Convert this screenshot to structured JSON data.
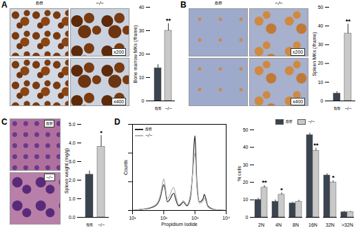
{
  "chart_data": [
    {
      "type": "bar",
      "title": "A",
      "y_label": "Bone marrow MKs (/frame)",
      "categories": [
        "fl/fl",
        "−/−"
      ],
      "values": [
        14,
        30
      ],
      "errors": [
        1.5,
        3
      ],
      "colors": [
        "#3a4350",
        "#c9c9c9"
      ],
      "ylim": [
        0,
        40
      ],
      "yticks": [
        0,
        10,
        20,
        30,
        40
      ],
      "annotations": [
        null,
        "**"
      ],
      "image_labels": {
        "columns": [
          "fl/fl",
          "−/−"
        ],
        "rows": [
          "x200",
          "x400"
        ]
      }
    },
    {
      "type": "bar",
      "title": "B",
      "y_label": "Spleen MKs (/frame)",
      "categories": [
        "fl/fl",
        "−/−"
      ],
      "values": [
        4,
        36
      ],
      "errors": [
        1,
        5
      ],
      "colors": [
        "#3a4350",
        "#c9c9c9"
      ],
      "ylim": [
        0,
        50
      ],
      "yticks": [
        0,
        10,
        20,
        30,
        40,
        50
      ],
      "annotations": [
        null,
        "**"
      ],
      "image_labels": {
        "columns": [
          "fl/fl",
          "−/−"
        ],
        "rows": [
          "x200",
          "x400"
        ]
      }
    },
    {
      "type": "bar",
      "title": "C",
      "y_label": "Spleen weight (mg/g)",
      "categories": [
        "fl/fl",
        "−/−"
      ],
      "values": [
        2.3,
        3.8
      ],
      "errors": [
        0.2,
        0.6
      ],
      "colors": [
        "#3a4350",
        "#c9c9c9"
      ],
      "ylim": [
        0,
        5
      ],
      "yticks": [
        0,
        1,
        2,
        3,
        4,
        5
      ],
      "annotations": [
        null,
        "*"
      ],
      "image_labels": {
        "rows": [
          "fl/fl",
          "−/−"
        ]
      }
    },
    {
      "type": "line",
      "title": "D",
      "x_label": "Propidium Iodide",
      "y_label": "Counts",
      "x": [
        10,
        20,
        40,
        60,
        80,
        90,
        100,
        110,
        130,
        160,
        190,
        210,
        240,
        300,
        380,
        420,
        460,
        550,
        700,
        850,
        950,
        1000,
        1050,
        1150,
        1400,
        1800,
        2000,
        2200,
        2600,
        3500,
        5000,
        10000
      ],
      "series": [
        {
          "name": "fl/fl",
          "color": "#2b2b2b",
          "line_style": "solid",
          "values": [
            0,
            2,
            5,
            10,
            25,
            38,
            45,
            38,
            15,
            20,
            28,
            30,
            20,
            8,
            12,
            15,
            13,
            8,
            20,
            70,
            120,
            130,
            110,
            50,
            15,
            20,
            28,
            22,
            8,
            3,
            1,
            0
          ]
        },
        {
          "name": "−/−",
          "color": "#b5b5b5",
          "line_style": "solid",
          "values": [
            0,
            2,
            6,
            12,
            30,
            45,
            55,
            45,
            20,
            28,
            38,
            40,
            28,
            10,
            14,
            17,
            15,
            10,
            25,
            65,
            95,
            100,
            85,
            40,
            12,
            16,
            22,
            17,
            6,
            2,
            1,
            0
          ]
        }
      ],
      "log": "x",
      "xlim": [
        10,
        10000
      ],
      "xticks": [
        {
          "value": 10,
          "label": "10¹"
        },
        {
          "value": 100,
          "label": "10²"
        },
        {
          "value": 1000,
          "label": "10³"
        },
        {
          "value": 10000,
          "label": "10⁴"
        }
      ],
      "ylim": [
        0,
        150
      ],
      "tick_labels": "x",
      "legend": "top-left"
    },
    {
      "type": "bar",
      "y_label": "% cells",
      "categories": [
        "2N",
        "4N",
        "8N",
        "16N",
        "32N",
        ">32N"
      ],
      "series": [
        {
          "name": "fl/fl",
          "color": "#3a4350",
          "values": [
            10,
            9,
            8,
            47,
            24,
            3
          ],
          "errors": [
            1,
            1,
            0.8,
            1.2,
            1,
            0.5
          ]
        },
        {
          "name": "−/−",
          "color": "#c9c9c9",
          "values": [
            17,
            13,
            9,
            38,
            20,
            3
          ],
          "errors": [
            1.2,
            1,
            0.8,
            1.5,
            1,
            0.5
          ]
        }
      ],
      "ylim": [
        0,
        50
      ],
      "yticks": [
        0,
        10,
        20,
        30,
        40,
        50
      ],
      "annotations": [
        "**",
        "*",
        null,
        "**",
        "*",
        null
      ],
      "legend": "top"
    }
  ]
}
